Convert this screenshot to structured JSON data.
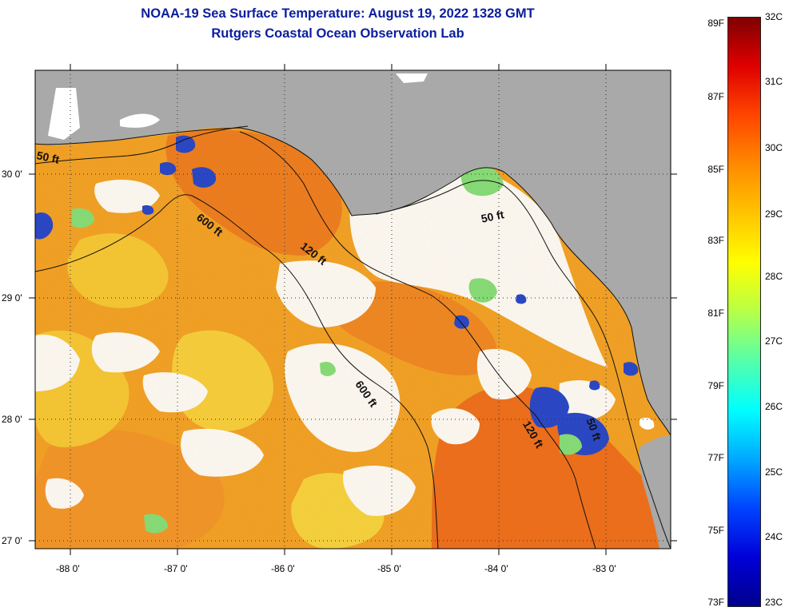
{
  "title": {
    "line1": "NOAA-19 Sea Surface Temperature:  August 19, 2022 1328 GMT",
    "line2": "Rutgers Coastal Ocean Observation Lab"
  },
  "map": {
    "lat_labels": [
      "30 0'",
      "29 0'",
      "28 0'",
      "27 0'"
    ],
    "lon_labels": [
      "-88 0'",
      "-87 0'",
      "-86 0'",
      "-85 0'",
      "-84 0'",
      "-83 0'"
    ],
    "contour_labels": [
      "50 ft",
      "600 ft",
      "120 ft",
      "50 ft",
      "600 ft",
      "120 ft",
      "50 ft"
    ],
    "colors": {
      "land": "#a9a9a9",
      "cloud": "#ffffff",
      "warm_sea": "#f3a022",
      "hot_sea": "#ef6a18",
      "cool_sea": "#f7d23a",
      "cold_patch": "#1b3fd0"
    }
  },
  "colorbar": {
    "fahrenheit": [
      "89F",
      "87F",
      "85F",
      "83F",
      "81F",
      "79F",
      "77F",
      "75F",
      "73F"
    ],
    "celsius": [
      "32C",
      "31C",
      "30C",
      "29C",
      "28C",
      "27C",
      "26C",
      "25C",
      "24C",
      "23C"
    ],
    "gradient": [
      "#00008c",
      "#0000d8",
      "#0044ff",
      "#00a8ff",
      "#00ffff",
      "#55ffaa",
      "#b6ff48",
      "#ffff00",
      "#ffc400",
      "#ff8a00",
      "#ff4600",
      "#e00000",
      "#800000"
    ]
  }
}
